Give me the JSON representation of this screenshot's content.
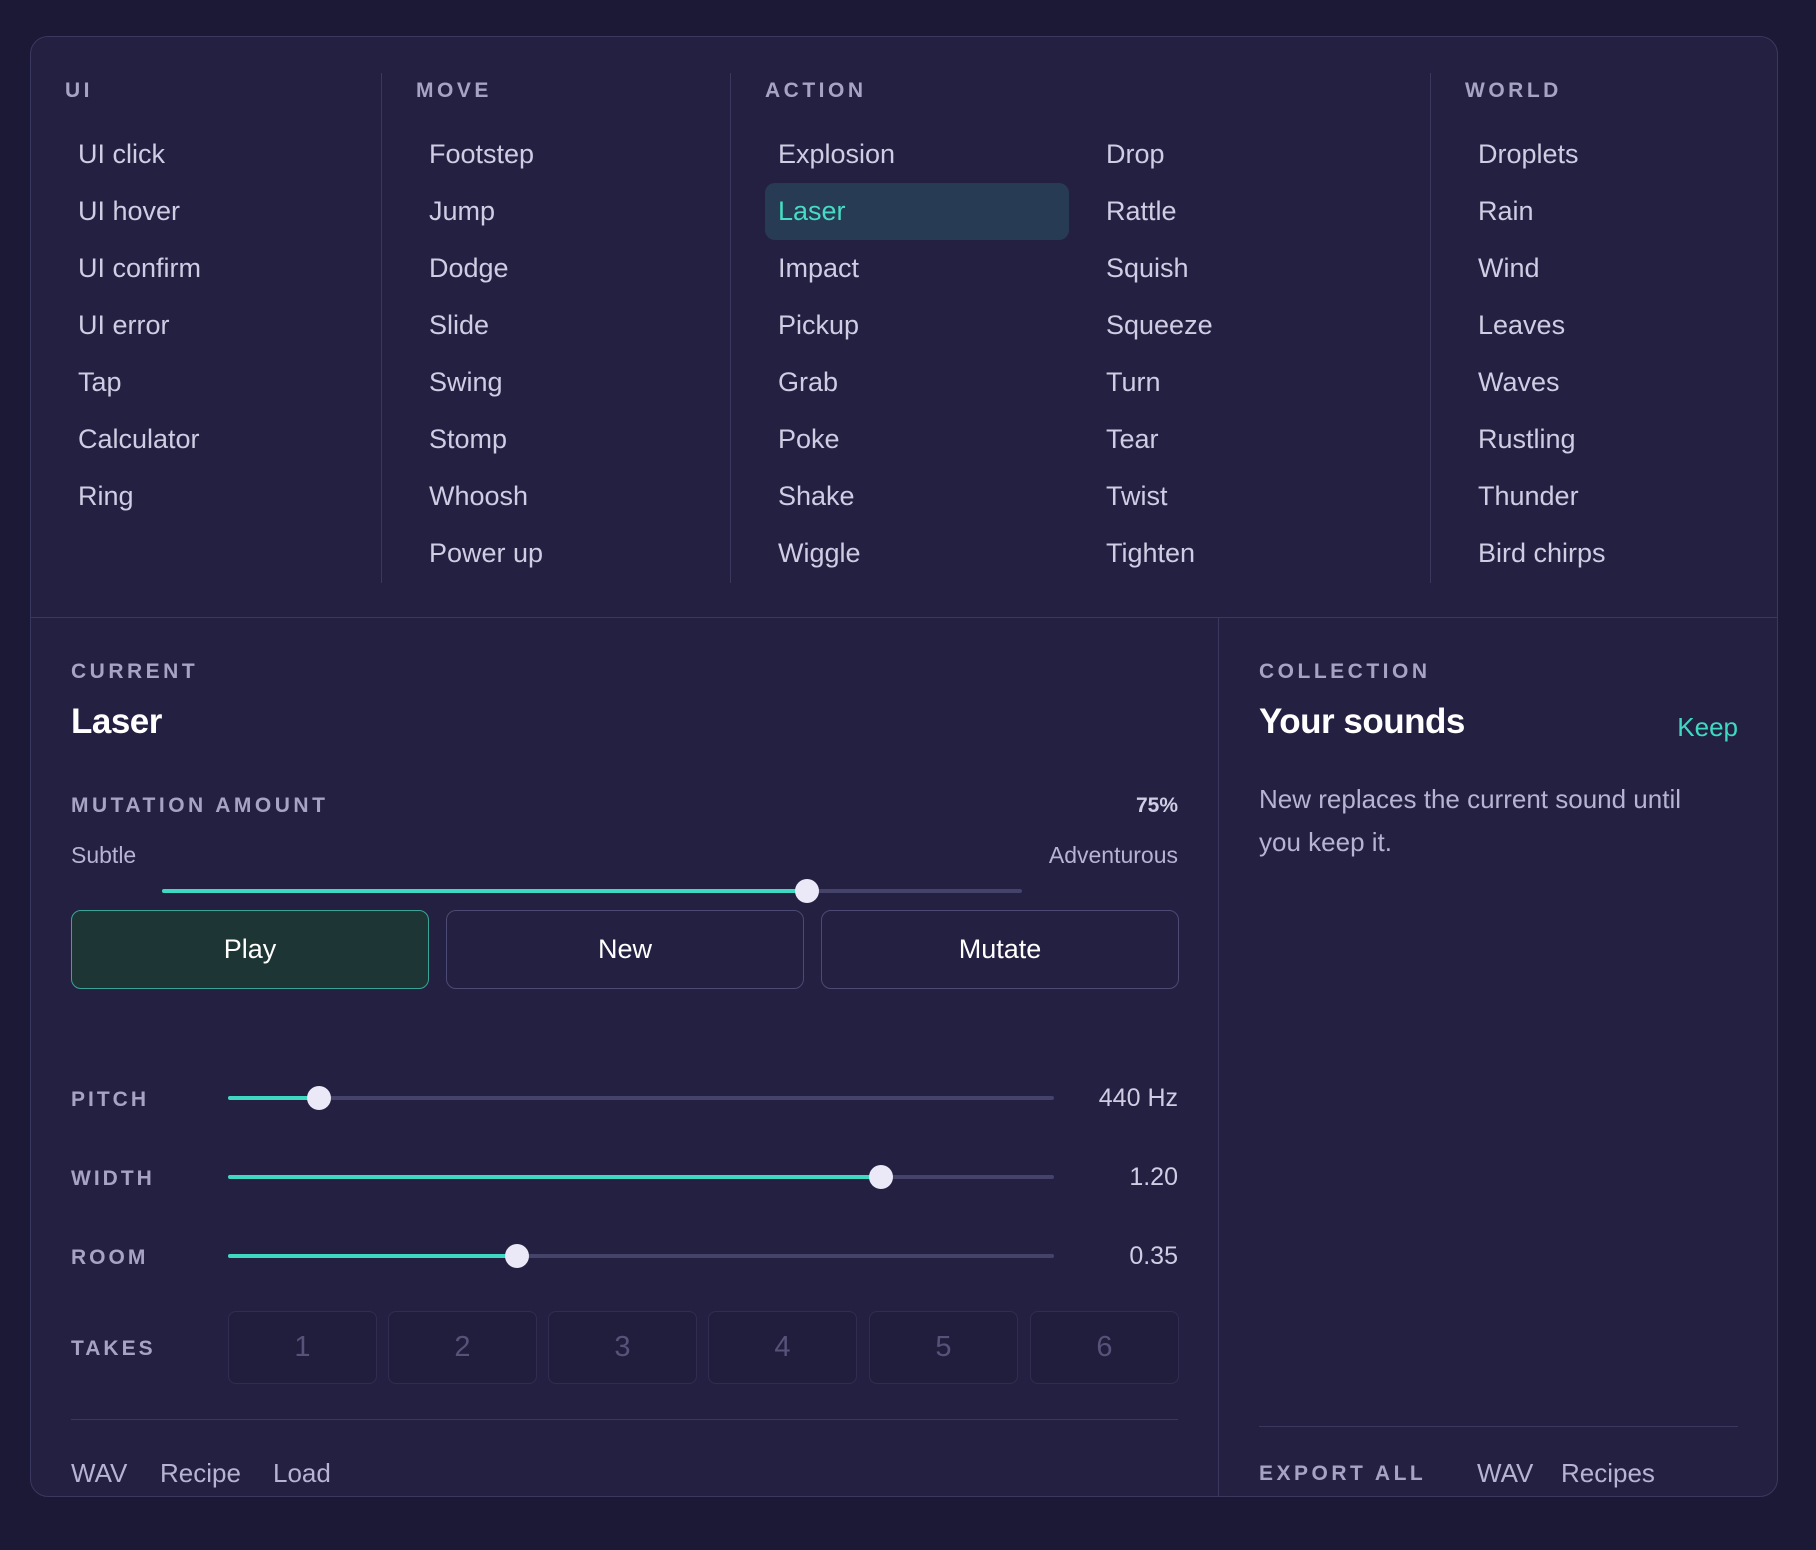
{
  "categories": [
    {
      "heading": "UI",
      "items": [
        "UI click",
        "UI hover",
        "UI confirm",
        "UI error",
        "Tap",
        "Calculator",
        "Ring"
      ]
    },
    {
      "heading": "MOVE",
      "items": [
        "Footstep",
        "Jump",
        "Dodge",
        "Slide",
        "Swing",
        "Stomp",
        "Whoosh",
        "Power up"
      ]
    },
    {
      "heading": "ACTION",
      "items": [
        "Explosion",
        "Laser",
        "Impact",
        "Pickup",
        "Grab",
        "Poke",
        "Shake",
        "Wiggle",
        "Drop",
        "Rattle",
        "Squish",
        "Squeeze",
        "Turn",
        "Tear",
        "Twist",
        "Tighten"
      ]
    },
    {
      "heading": "WORLD",
      "items": [
        "Droplets",
        "Rain",
        "Wind",
        "Leaves",
        "Waves",
        "Rustling",
        "Thunder",
        "Bird chirps"
      ]
    }
  ],
  "selected_sound": "Laser",
  "current": {
    "label": "CURRENT",
    "title": "Laser",
    "mutation": {
      "label": "MUTATION AMOUNT",
      "value_text": "75%",
      "value": 0.75,
      "min_label": "Subtle",
      "max_label": "Adventurous"
    },
    "buttons": {
      "play": "Play",
      "new": "New",
      "mutate": "Mutate"
    },
    "params": [
      {
        "label": "PITCH",
        "value_text": "440 Hz",
        "fraction": 0.11
      },
      {
        "label": "WIDTH",
        "value_text": "1.20",
        "fraction": 0.79
      },
      {
        "label": "ROOM",
        "value_text": "0.35",
        "fraction": 0.35
      }
    ],
    "takes": {
      "label": "TAKES",
      "items": [
        "1",
        "2",
        "3",
        "4",
        "5",
        "6"
      ]
    },
    "footer_links": [
      "WAV",
      "Recipe",
      "Load"
    ]
  },
  "collection": {
    "label": "COLLECTION",
    "title": "Your sounds",
    "keep_label": "Keep",
    "description": "New replaces the current sound until you keep it.",
    "export_label": "EXPORT ALL",
    "export_links": [
      "WAV",
      "Recipes"
    ]
  },
  "colors": {
    "accent": "#3fd9c1",
    "selected_bg": "#283b54",
    "panel_bg": "#232042",
    "page_bg": "#1b1935"
  }
}
